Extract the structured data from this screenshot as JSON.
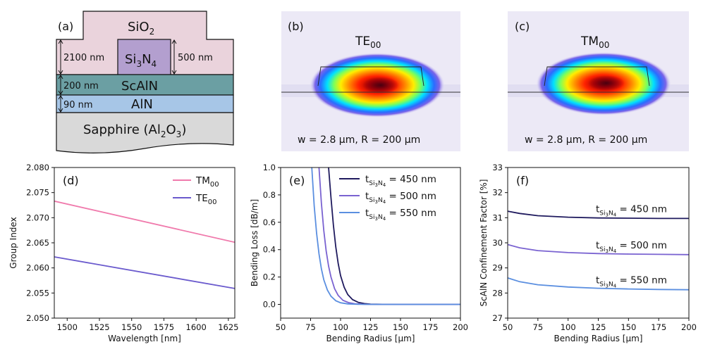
{
  "panel_a": {
    "label": "(a)",
    "layers": {
      "sio2": "SiO",
      "sio2_sub": "2",
      "si3n4_a": "Si",
      "si3n4_sub1": "3",
      "si3n4_b": "N",
      "si3n4_sub2": "4",
      "scaln": "ScAlN",
      "aln": "AlN",
      "sapphire_a": "Sapphire (Al",
      "sapphire_sub1": "2",
      "sapphire_b": "O",
      "sapphire_sub2": "3",
      "sapphire_c": ")"
    },
    "dims": {
      "d2100": "2100 nm",
      "d500": "500 nm",
      "d200": "200 nm",
      "d90": "90 nm"
    },
    "colors": {
      "sio2": "#ead3dc",
      "si3n4": "#b39fcf",
      "scaln": "#6b9fa3",
      "aln": "#a7c6e7",
      "sapphire": "#d9d9d9"
    }
  },
  "panel_b": {
    "label": "(b)",
    "mode": "TE",
    "mode_sub": "00",
    "caption": "w = 2.8 µm, R = 200 µm"
  },
  "panel_c": {
    "label": "(c)",
    "mode": "TM",
    "mode_sub": "00",
    "caption": "w = 2.8 µm, R = 200 µm"
  },
  "chart_data": [
    {
      "id": "d",
      "label": "(d)",
      "type": "line",
      "xlabel": "Wavelength [nm]",
      "ylabel": "Group Index",
      "xlim": [
        1490,
        1630
      ],
      "ylim": [
        2.05,
        2.08
      ],
      "xticks": [
        1500,
        1525,
        1550,
        1575,
        1600,
        1625
      ],
      "yticks": [
        2.05,
        2.055,
        2.06,
        2.065,
        2.07,
        2.075,
        2.08
      ],
      "ytick_labels": [
        "2.050",
        "2.055",
        "2.060",
        "2.065",
        "2.070",
        "2.075",
        "2.080"
      ],
      "legend_position": "top-right",
      "series": [
        {
          "name": "TM",
          "sub": "00",
          "color": "#f07aac",
          "x": [
            1490,
            1630
          ],
          "y": [
            2.0733,
            2.0651
          ]
        },
        {
          "name": "TE",
          "sub": "00",
          "color": "#6a5acd",
          "x": [
            1490,
            1630
          ],
          "y": [
            2.0622,
            2.0559
          ]
        }
      ]
    },
    {
      "id": "e",
      "label": "(e)",
      "type": "line",
      "xlabel": "Bending Radius [µm]",
      "ylabel": "Bending Loss [dB/m]",
      "xlim": [
        50,
        200
      ],
      "ylim": [
        -0.1,
        1.0
      ],
      "xticks": [
        50,
        75,
        100,
        125,
        150,
        175,
        200
      ],
      "yticks": [
        0.0,
        0.2,
        0.4,
        0.6,
        0.8,
        1.0
      ],
      "ytick_labels": [
        "0.0",
        "0.2",
        "0.4",
        "0.6",
        "0.8",
        "1.0"
      ],
      "legend_position": "top-right",
      "series": [
        {
          "name": "t",
          "sub": "Si",
          "sub2": "3",
          "sub3": "N",
          "sub4": "4",
          "suffix": " = 450 nm",
          "color": "#1f1a5e",
          "x": [
            90,
            92,
            94,
            96,
            98,
            100,
            103,
            106,
            110,
            115,
            120,
            125,
            135,
            150,
            175,
            200
          ],
          "y": [
            1.0,
            0.78,
            0.58,
            0.42,
            0.3,
            0.21,
            0.125,
            0.072,
            0.035,
            0.014,
            0.006,
            0.002,
            0.0005,
            0.0,
            0.0,
            0.0
          ]
        },
        {
          "name": "t",
          "sub": "Si",
          "sub2": "3",
          "sub3": "N",
          "sub4": "4",
          "suffix": " = 500 nm",
          "color": "#7a63d1",
          "x": [
            82,
            84,
            86,
            88,
            90,
            92,
            95,
            98,
            102,
            107,
            112,
            120,
            135,
            150,
            175,
            200
          ],
          "y": [
            1.0,
            0.74,
            0.54,
            0.39,
            0.28,
            0.2,
            0.115,
            0.066,
            0.03,
            0.012,
            0.005,
            0.001,
            0.0002,
            0.0,
            0.0,
            0.0
          ]
        },
        {
          "name": "t",
          "sub": "Si",
          "sub2": "3",
          "sub3": "N",
          "sub4": "4",
          "suffix": " = 550 nm",
          "color": "#5b8fe0",
          "x": [
            76,
            78,
            80,
            82,
            84,
            86,
            89,
            92,
            96,
            100,
            106,
            115,
            130,
            150,
            175,
            200
          ],
          "y": [
            1.0,
            0.72,
            0.52,
            0.37,
            0.26,
            0.18,
            0.105,
            0.06,
            0.027,
            0.012,
            0.004,
            0.001,
            0.0002,
            0.0,
            0.0,
            0.0
          ]
        }
      ]
    },
    {
      "id": "f",
      "label": "(f)",
      "type": "line",
      "xlabel": "Bending Radius [µm]",
      "ylabel": "ScAlN Confinement Factor [%]",
      "xlim": [
        50,
        200
      ],
      "ylim": [
        27,
        33
      ],
      "xticks": [
        50,
        75,
        100,
        125,
        150,
        175,
        200
      ],
      "yticks": [
        27,
        28,
        29,
        30,
        31,
        32,
        33
      ],
      "ytick_labels": [
        "27",
        "28",
        "29",
        "30",
        "31",
        "32",
        "33"
      ],
      "series": [
        {
          "name": "t",
          "sub": "Si",
          "sub2": "3",
          "sub3": "N",
          "sub4": "4",
          "suffix": " = 450 nm",
          "color": "#1f1a5e",
          "x": [
            50,
            60,
            75,
            100,
            125,
            150,
            175,
            200
          ],
          "y": [
            31.26,
            31.17,
            31.08,
            31.02,
            30.99,
            30.98,
            30.97,
            30.97
          ]
        },
        {
          "name": "t",
          "sub": "Si",
          "sub2": "3",
          "sub3": "N",
          "sub4": "4",
          "suffix": " = 500 nm",
          "color": "#7a63d1",
          "x": [
            50,
            60,
            75,
            100,
            125,
            150,
            175,
            200
          ],
          "y": [
            29.93,
            29.8,
            29.69,
            29.61,
            29.57,
            29.55,
            29.54,
            29.53
          ]
        },
        {
          "name": "t",
          "sub": "Si",
          "sub2": "3",
          "sub3": "N",
          "sub4": "4",
          "suffix": " = 550 nm",
          "color": "#5b8fe0",
          "x": [
            50,
            60,
            75,
            100,
            125,
            150,
            175,
            200
          ],
          "y": [
            28.6,
            28.45,
            28.33,
            28.24,
            28.19,
            28.16,
            28.14,
            28.13
          ]
        }
      ]
    }
  ]
}
